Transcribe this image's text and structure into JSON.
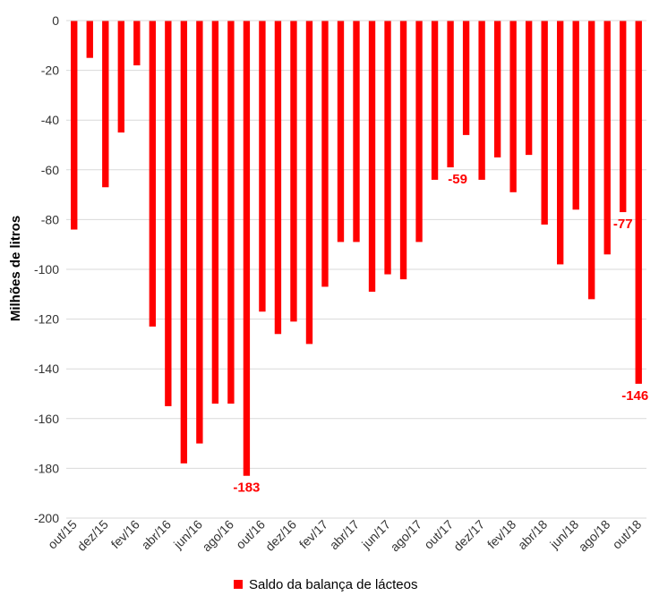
{
  "chart_data": {
    "type": "bar",
    "title": "",
    "xlabel": "",
    "ylabel": "Milhões de litros",
    "ylim": [
      -200,
      0
    ],
    "yticks": [
      0,
      -20,
      -40,
      -60,
      -80,
      -100,
      -120,
      -140,
      -160,
      -180,
      -200
    ],
    "grid": true,
    "bar_color": "#ff0000",
    "categories": [
      "out/15",
      "nov/15",
      "dez/15",
      "jan/16",
      "fev/16",
      "mar/16",
      "abr/16",
      "mai/16",
      "jun/16",
      "jul/16",
      "ago/16",
      "set/16",
      "out/16",
      "nov/16",
      "dez/16",
      "jan/17",
      "fev/17",
      "mar/17",
      "abr/17",
      "mai/17",
      "jun/17",
      "jul/17",
      "ago/17",
      "set/17",
      "out/17",
      "nov/17",
      "dez/17",
      "jan/18",
      "fev/18",
      "mar/18",
      "abr/18",
      "mai/18",
      "jun/18",
      "jul/18",
      "ago/18",
      "set/18",
      "out/18"
    ],
    "tick_labels": [
      "out/15",
      "dez/15",
      "fev/16",
      "abr/16",
      "jun/16",
      "ago/16",
      "out/16",
      "dez/16",
      "fev/17",
      "abr/17",
      "jun/17",
      "ago/17",
      "out/17",
      "dez/17",
      "fev/18",
      "abr/18",
      "jun/18",
      "ago/18",
      "out/18"
    ],
    "series": [
      {
        "name": "Saldo da balança de lácteos",
        "values": [
          -84,
          -15,
          -67,
          -45,
          -18,
          -123,
          -155,
          -178,
          -170,
          -154,
          -154,
          -183,
          -117,
          -126,
          -121,
          -130,
          -107,
          -89,
          -89,
          -109,
          -102,
          -104,
          -89,
          -64,
          -59,
          -46,
          -64,
          -55,
          -69,
          -54,
          -82,
          -98,
          -76,
          -112,
          -94,
          -77,
          -146
        ]
      }
    ],
    "data_labels": [
      {
        "index": 11,
        "text": "-183"
      },
      {
        "index": 24,
        "text": "-59"
      },
      {
        "index": 35,
        "text": "-77"
      },
      {
        "index": 36,
        "text": "-146"
      }
    ],
    "legend": {
      "position": "bottom-center",
      "label": "Saldo da balança de lácteos"
    }
  }
}
